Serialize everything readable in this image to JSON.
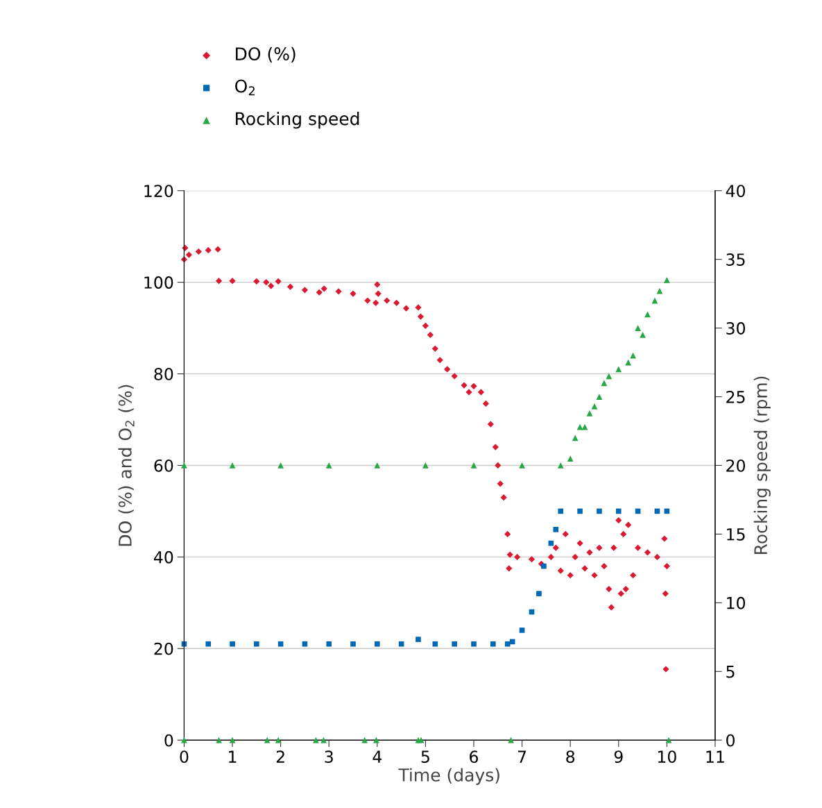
{
  "chart_data": {
    "type": "scatter",
    "xlabel": "Time (days)",
    "ylabel": "DO (%) and O$_{2}$ (%)",
    "y2label": "Rocking speed (rpm)",
    "xlim": [
      0,
      11
    ],
    "xticks": [
      0,
      1,
      2,
      3,
      4,
      5,
      6,
      7,
      8,
      9,
      10,
      11
    ],
    "ylim": [
      0,
      120
    ],
    "yticks": [
      0,
      20,
      40,
      60,
      80,
      100,
      120
    ],
    "y2lim": [
      0,
      40
    ],
    "y2ticks": [
      0,
      5,
      10,
      15,
      20,
      25,
      30,
      35,
      40
    ],
    "grid": "y",
    "legend": "top left",
    "series": [
      {
        "name": "DO (%)",
        "color": "#d91a32",
        "marker": "diamond",
        "x": [
          0,
          0.02,
          0.1,
          0.3,
          0.5,
          0.7,
          0.72,
          1.0,
          1.5,
          1.7,
          1.8,
          1.95,
          2.2,
          2.5,
          2.8,
          2.9,
          3.2,
          3.5,
          3.8,
          3.97,
          4.0,
          4.02,
          4.2,
          4.4,
          4.6,
          4.85,
          4.9,
          5.0,
          5.1,
          5.2,
          5.3,
          5.45,
          5.6,
          5.8,
          5.9,
          6.0,
          6.15,
          6.25,
          6.35,
          6.45,
          6.5,
          6.55,
          6.62,
          6.7,
          6.73,
          6.75,
          6.9,
          7.2,
          7.4,
          7.6,
          7.7,
          7.8,
          7.9,
          8.0,
          8.1,
          8.2,
          8.3,
          8.4,
          8.5,
          8.6,
          8.7,
          8.8,
          8.85,
          8.9,
          9.0,
          9.05,
          9.1,
          9.15,
          9.2,
          9.3,
          9.4,
          9.6,
          9.8,
          9.95,
          9.97,
          9.98,
          10.0
        ],
        "values": [
          105,
          107.5,
          106,
          106.7,
          107,
          107.2,
          100.3,
          100.3,
          100.2,
          100,
          99.2,
          100.2,
          99,
          98.3,
          97.8,
          98.6,
          98,
          97.5,
          96,
          95.5,
          99.5,
          97.5,
          96,
          95.5,
          94.3,
          94.5,
          92.5,
          90.5,
          88.5,
          85.5,
          83,
          81,
          79.5,
          77.5,
          76,
          77.3,
          76,
          73.5,
          69,
          64,
          60,
          56,
          53,
          45,
          37.5,
          40.5,
          40,
          39.5,
          38.5,
          40,
          42,
          37,
          45,
          36,
          40,
          43,
          37.5,
          41,
          36,
          42,
          38,
          33,
          29,
          42,
          48,
          32,
          45,
          33,
          47,
          36,
          42,
          41,
          40,
          44,
          32,
          15.5,
          38
        ]
      },
      {
        "name": "O$_{2}$",
        "color": "#0068b5",
        "marker": "square",
        "x": [
          0,
          0.5,
          1,
          1.5,
          2,
          2.5,
          3,
          3.5,
          4,
          4.5,
          4.85,
          5.2,
          5.6,
          6,
          6.4,
          6.7,
          6.8,
          7.0,
          7.2,
          7.35,
          7.45,
          7.6,
          7.7,
          7.8,
          8.2,
          8.6,
          9.0,
          9.4,
          9.8,
          10.0
        ],
        "values": [
          21,
          21,
          21,
          21,
          21,
          21,
          21,
          21,
          21,
          21,
          22,
          21,
          21,
          21,
          21,
          21,
          21.5,
          24,
          28,
          32,
          38,
          43,
          46,
          50,
          50,
          50,
          50,
          50,
          50,
          50
        ]
      },
      {
        "name": "Rocking speed",
        "color": "#27a844",
        "marker": "triangle",
        "axis": "y2",
        "x": [
          0,
          0,
          0.72,
          1.0,
          1.0,
          1.72,
          1.95,
          2.0,
          2.73,
          2.89,
          3.0,
          3.74,
          3.98,
          4.0,
          4.85,
          4.91,
          5.0,
          6.0,
          6.77,
          7.0,
          7.8,
          8.0,
          8.1,
          8.2,
          8.3,
          8.4,
          8.5,
          8.6,
          8.7,
          8.8,
          9.0,
          9.2,
          9.3,
          9.4,
          9.5,
          9.6,
          9.75,
          9.85,
          10.0,
          10.04
        ],
        "values": [
          0,
          20,
          0,
          0,
          20,
          0,
          0,
          20,
          0,
          0,
          20,
          0,
          0,
          20,
          0,
          0,
          20,
          20,
          0,
          20,
          20,
          20.5,
          22,
          22.8,
          22.8,
          23.8,
          24.3,
          25,
          26,
          26.5,
          27,
          27.5,
          28,
          30,
          29.5,
          31,
          32,
          32.7,
          33.5,
          0
        ]
      }
    ]
  }
}
